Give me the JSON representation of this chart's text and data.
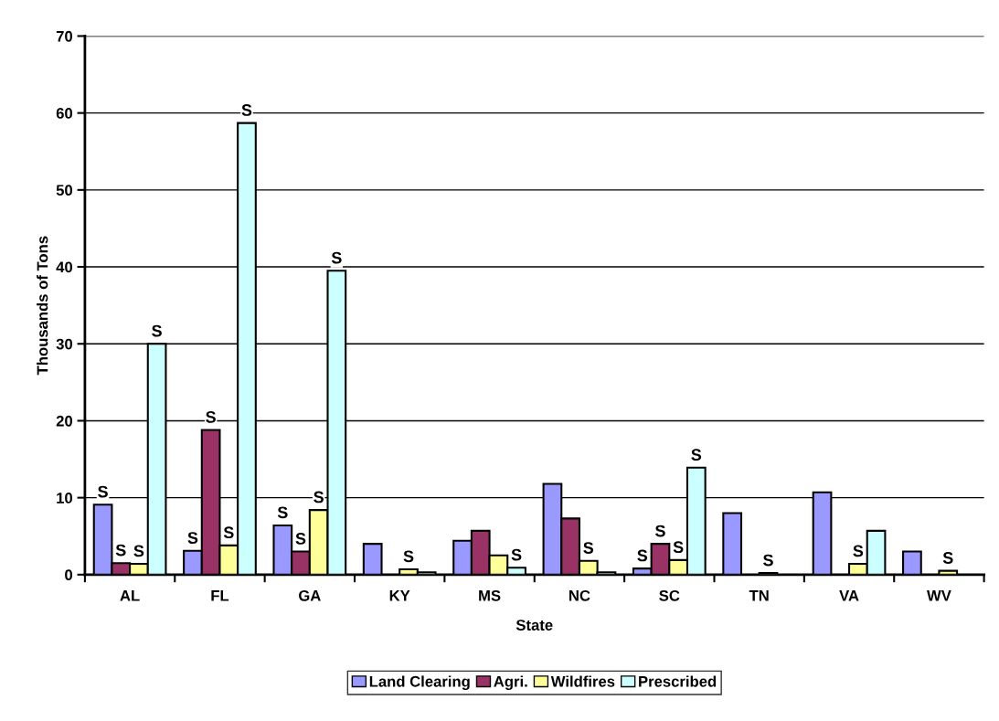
{
  "chart_data": {
    "type": "bar",
    "xlabel": "State",
    "ylabel": "Thousands of Tons",
    "categories": [
      "AL",
      "FL",
      "GA",
      "KY",
      "MS",
      "NC",
      "SC",
      "TN",
      "VA",
      "WV"
    ],
    "series": [
      {
        "name": "Land Clearing",
        "color": "#9999ff",
        "values": [
          9.1,
          3.1,
          6.4,
          4.0,
          4.4,
          11.8,
          0.8,
          8.0,
          10.7,
          3.0
        ],
        "value_labels": [
          "S",
          "S",
          "S",
          null,
          null,
          null,
          "S",
          null,
          null,
          null
        ]
      },
      {
        "name": "Agri.",
        "color": "#993366",
        "values": [
          1.5,
          18.8,
          3.0,
          null,
          5.7,
          7.3,
          4.0,
          null,
          null,
          null
        ],
        "value_labels": [
          "S",
          "S",
          "S",
          null,
          null,
          null,
          "S",
          null,
          null,
          null
        ]
      },
      {
        "name": "Wildfires",
        "color": "#ffff99",
        "values": [
          1.4,
          3.8,
          8.4,
          0.7,
          2.5,
          1.8,
          1.9,
          0.2,
          1.4,
          0.5
        ],
        "value_labels": [
          "S",
          "S",
          "S",
          "S",
          null,
          "S",
          "S",
          "S",
          "S",
          "S"
        ]
      },
      {
        "name": "Prescribed",
        "color": "#ccffff",
        "values": [
          30.0,
          58.7,
          39.5,
          0.3,
          0.9,
          0.3,
          13.9,
          null,
          5.7,
          null
        ],
        "value_labels": [
          "S",
          "S",
          "S",
          null,
          "S",
          null,
          "S",
          null,
          null,
          null
        ]
      }
    ],
    "ylim": [
      0,
      70
    ],
    "yticks": [
      0,
      10,
      20,
      30,
      40,
      50,
      60,
      70
    ],
    "grid": "y",
    "legend": "bottom"
  }
}
